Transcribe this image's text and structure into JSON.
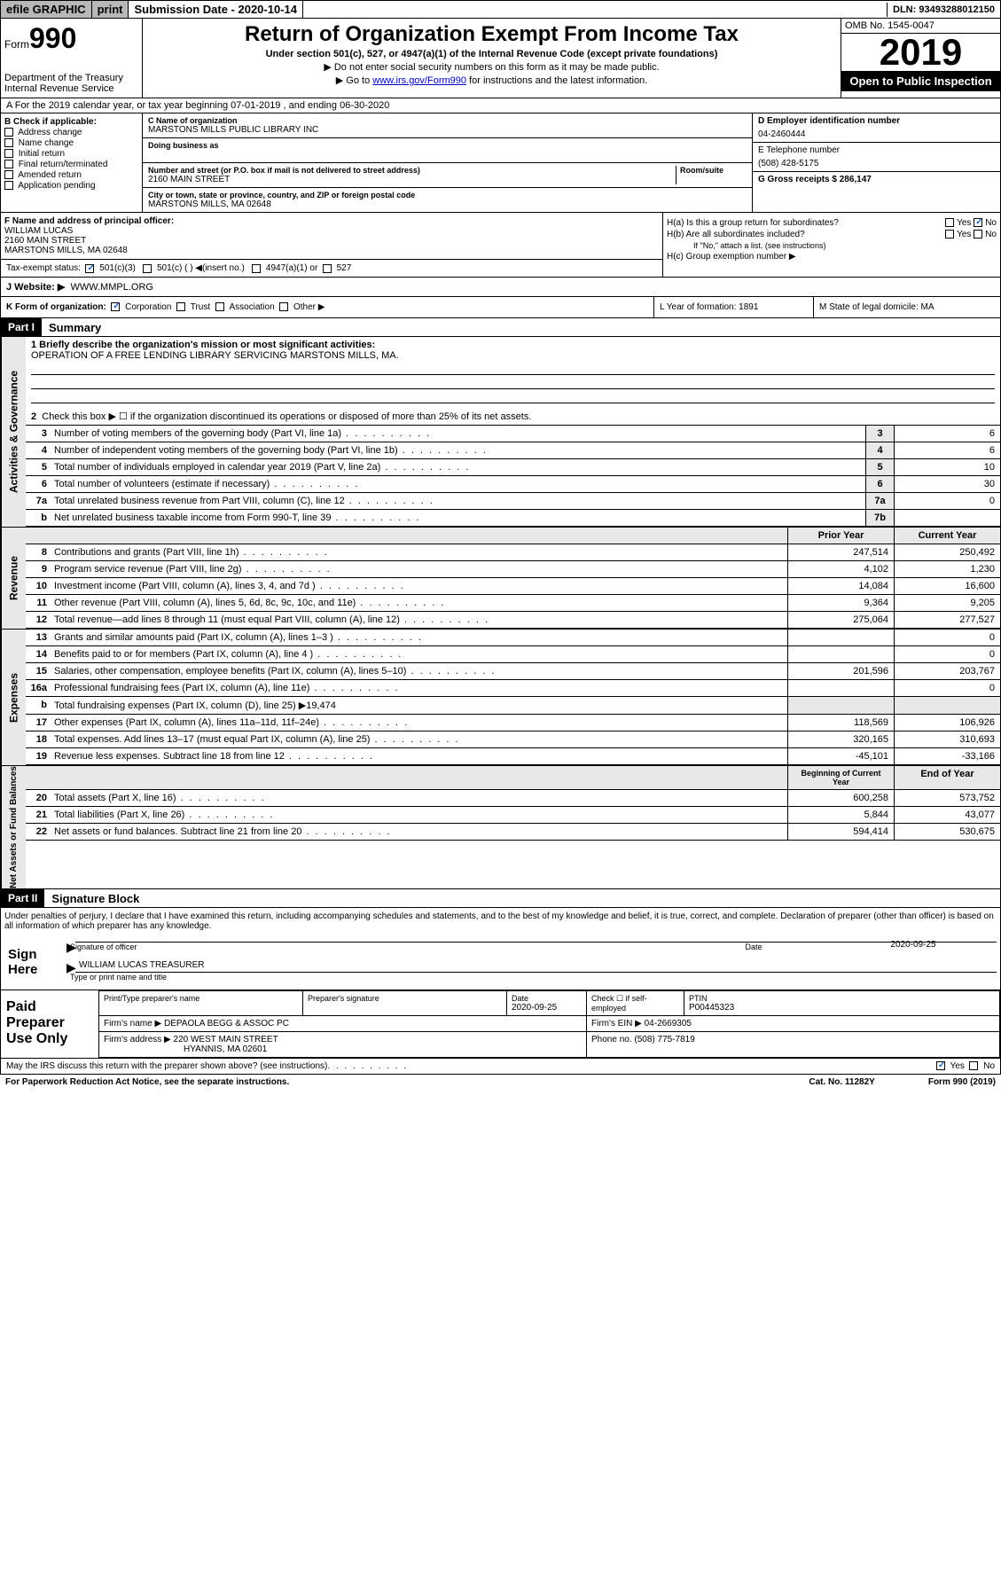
{
  "topbar": {
    "efile": "efile GRAPHIC",
    "print": "print",
    "subdate_label": "Submission Date - 2020-10-14",
    "dln": "DLN: 93493288012150"
  },
  "header": {
    "form_word": "Form",
    "form_num": "990",
    "dept": "Department of the Treasury Internal Revenue Service",
    "main_title": "Return of Organization Exempt From Income Tax",
    "subtitle": "Under section 501(c), 527, or 4947(a)(1) of the Internal Revenue Code (except private foundations)",
    "instr1": "Do not enter social security numbers on this form as it may be made public.",
    "instr2_pre": "Go to ",
    "instr2_link": "www.irs.gov/Form990",
    "instr2_post": " for instructions and the latest information.",
    "omb": "OMB No. 1545-0047",
    "year": "2019",
    "open": "Open to Public Inspection"
  },
  "row_a": "A For the 2019 calendar year, or tax year beginning 07-01-2019   , and ending 06-30-2020",
  "col_b": {
    "label": "B Check if applicable:",
    "opts": [
      "Address change",
      "Name change",
      "Initial return",
      "Final return/terminated",
      "Amended return",
      "Application pending"
    ]
  },
  "col_c": {
    "name_label": "C Name of organization",
    "name": "MARSTONS MILLS PUBLIC LIBRARY INC",
    "dba_label": "Doing business as",
    "addr_label": "Number and street (or P.O. box if mail is not delivered to street address)",
    "room_label": "Room/suite",
    "addr": "2160 MAIN STREET",
    "city_label": "City or town, state or province, country, and ZIP or foreign postal code",
    "city": "MARSTONS MILLS, MA  02648"
  },
  "col_d": {
    "ein_label": "D Employer identification number",
    "ein": "04-2460444",
    "tel_label": "E Telephone number",
    "tel": "(508) 428-5175",
    "gross_label": "G Gross receipts $ 286,147"
  },
  "col_f": {
    "label": "F  Name and address of principal officer:",
    "name": "WILLIAM LUCAS",
    "addr1": "2160 MAIN STREET",
    "addr2": "MARSTONS MILLS, MA  02648"
  },
  "col_h": {
    "ha": "H(a)  Is this a group return for subordinates?",
    "hb": "H(b)  Are all subordinates included?",
    "hb_note": "If \"No,\" attach a list. (see instructions)",
    "hc": "H(c)  Group exemption number ▶"
  },
  "tax_status": {
    "label": "Tax-exempt status:",
    "o1": "501(c)(3)",
    "o2": "501(c) (  ) ◀(insert no.)",
    "o3": "4947(a)(1) or",
    "o4": "527"
  },
  "website": {
    "label": "J   Website: ▶",
    "val": "WWW.MMPL.ORG"
  },
  "klm": {
    "k": "K Form of organization:",
    "k_opts": [
      "Corporation",
      "Trust",
      "Association",
      "Other ▶"
    ],
    "l": "L Year of formation: 1891",
    "m": "M State of legal domicile: MA"
  },
  "part1": {
    "num": "Part I",
    "title": "Summary"
  },
  "sidebar_labels": [
    "Activities & Governance",
    "Revenue",
    "Expenses",
    "Net Assets or Fund Balances"
  ],
  "lines": {
    "l1_label": "1  Briefly describe the organization's mission or most significant activities:",
    "l1_text": "OPERATION OF A FREE LENDING LIBRARY SERVICING MARSTONS MILLS, MA.",
    "l2": "Check this box ▶ ☐  if the organization discontinued its operations or disposed of more than 25% of its net assets.",
    "rows_gov": [
      {
        "n": "3",
        "t": "Number of voting members of the governing body (Part VI, line 1a)",
        "b": "3",
        "v": "6"
      },
      {
        "n": "4",
        "t": "Number of independent voting members of the governing body (Part VI, line 1b)",
        "b": "4",
        "v": "6"
      },
      {
        "n": "5",
        "t": "Total number of individuals employed in calendar year 2019 (Part V, line 2a)",
        "b": "5",
        "v": "10"
      },
      {
        "n": "6",
        "t": "Total number of volunteers (estimate if necessary)",
        "b": "6",
        "v": "30"
      },
      {
        "n": "7a",
        "t": "Total unrelated business revenue from Part VIII, column (C), line 12",
        "b": "7a",
        "v": "0"
      },
      {
        "n": "b",
        "t": "Net unrelated business taxable income from Form 990-T, line 39",
        "b": "7b",
        "v": ""
      }
    ],
    "header_py": "Prior Year",
    "header_cy": "Current Year",
    "rows_rev": [
      {
        "n": "8",
        "t": "Contributions and grants (Part VIII, line 1h)",
        "p": "247,514",
        "c": "250,492"
      },
      {
        "n": "9",
        "t": "Program service revenue (Part VIII, line 2g)",
        "p": "4,102",
        "c": "1,230"
      },
      {
        "n": "10",
        "t": "Investment income (Part VIII, column (A), lines 3, 4, and 7d )",
        "p": "14,084",
        "c": "16,600"
      },
      {
        "n": "11",
        "t": "Other revenue (Part VIII, column (A), lines 5, 6d, 8c, 9c, 10c, and 11e)",
        "p": "9,364",
        "c": "9,205"
      },
      {
        "n": "12",
        "t": "Total revenue—add lines 8 through 11 (must equal Part VIII, column (A), line 12)",
        "p": "275,064",
        "c": "277,527"
      }
    ],
    "rows_exp": [
      {
        "n": "13",
        "t": "Grants and similar amounts paid (Part IX, column (A), lines 1–3 )",
        "p": "",
        "c": "0"
      },
      {
        "n": "14",
        "t": "Benefits paid to or for members (Part IX, column (A), line 4 )",
        "p": "",
        "c": "0"
      },
      {
        "n": "15",
        "t": "Salaries, other compensation, employee benefits (Part IX, column (A), lines 5–10)",
        "p": "201,596",
        "c": "203,767"
      },
      {
        "n": "16a",
        "t": "Professional fundraising fees (Part IX, column (A), line 11e)",
        "p": "",
        "c": "0"
      },
      {
        "n": "b",
        "t": "Total fundraising expenses (Part IX, column (D), line 25) ▶19,474",
        "p": "—",
        "c": "—"
      },
      {
        "n": "17",
        "t": "Other expenses (Part IX, column (A), lines 11a–11d, 11f–24e)",
        "p": "118,569",
        "c": "106,926"
      },
      {
        "n": "18",
        "t": "Total expenses. Add lines 13–17 (must equal Part IX, column (A), line 25)",
        "p": "320,165",
        "c": "310,693"
      },
      {
        "n": "19",
        "t": "Revenue less expenses. Subtract line 18 from line 12",
        "p": "-45,101",
        "c": "-33,166"
      }
    ],
    "header_bcy": "Beginning of Current Year",
    "header_eoy": "End of Year",
    "rows_net": [
      {
        "n": "20",
        "t": "Total assets (Part X, line 16)",
        "p": "600,258",
        "c": "573,752"
      },
      {
        "n": "21",
        "t": "Total liabilities (Part X, line 26)",
        "p": "5,844",
        "c": "43,077"
      },
      {
        "n": "22",
        "t": "Net assets or fund balances. Subtract line 21 from line 20",
        "p": "594,414",
        "c": "530,675"
      }
    ]
  },
  "part2": {
    "num": "Part II",
    "title": "Signature Block"
  },
  "perjury": "Under penalties of perjury, I declare that I have examined this return, including accompanying schedules and statements, and to the best of my knowledge and belief, it is true, correct, and complete. Declaration of preparer (other than officer) is based on all information of which preparer has any knowledge.",
  "sign": {
    "label": "Sign Here",
    "sig_officer": "Signature of officer",
    "date": "2020-09-25",
    "date_label": "Date",
    "name": "WILLIAM LUCAS TREASURER",
    "name_label": "Type or print name and title"
  },
  "paid": {
    "label": "Paid Preparer Use Only",
    "h1": "Print/Type preparer's name",
    "h2": "Preparer's signature",
    "h3": "Date",
    "h3v": "2020-09-25",
    "h4": "Check ☐ if self-employed",
    "h5": "PTIN",
    "h5v": "P00445323",
    "firm_label": "Firm's name   ▶",
    "firm": "DEPAOLA BEGG & ASSOC PC",
    "ein_label": "Firm's EIN ▶",
    "ein": "04-2669305",
    "addr_label": "Firm's address ▶",
    "addr1": "220 WEST MAIN STREET",
    "addr2": "HYANNIS, MA  02601",
    "phone_label": "Phone no.",
    "phone": "(508) 775-7819"
  },
  "discuss": "May the IRS discuss this return with the preparer shown above? (see instructions)",
  "footer": {
    "paperwork": "For Paperwork Reduction Act Notice, see the separate instructions.",
    "cat": "Cat. No. 11282Y",
    "form": "Form 990 (2019)"
  }
}
